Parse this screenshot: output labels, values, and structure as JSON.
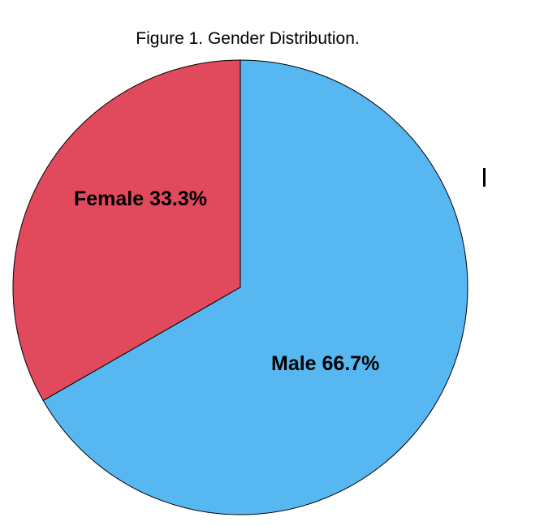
{
  "chart_data": {
    "type": "pie",
    "title": "Figure 1. Gender Distribution.",
    "legend": "none",
    "start_angle_deg": 90,
    "direction": "counterclockwise",
    "edge_color": "#000000",
    "edge_width": 1,
    "slices": [
      {
        "label": "Female",
        "value": 33.3,
        "display_label": "Female 33.3%",
        "color": "#e1495c"
      },
      {
        "label": "Male",
        "value": 66.7,
        "display_label": "Male 66.7%",
        "color": "#57b8f1"
      }
    ]
  },
  "stray_mark": {
    "glyph": "|",
    "color": "#000000"
  }
}
